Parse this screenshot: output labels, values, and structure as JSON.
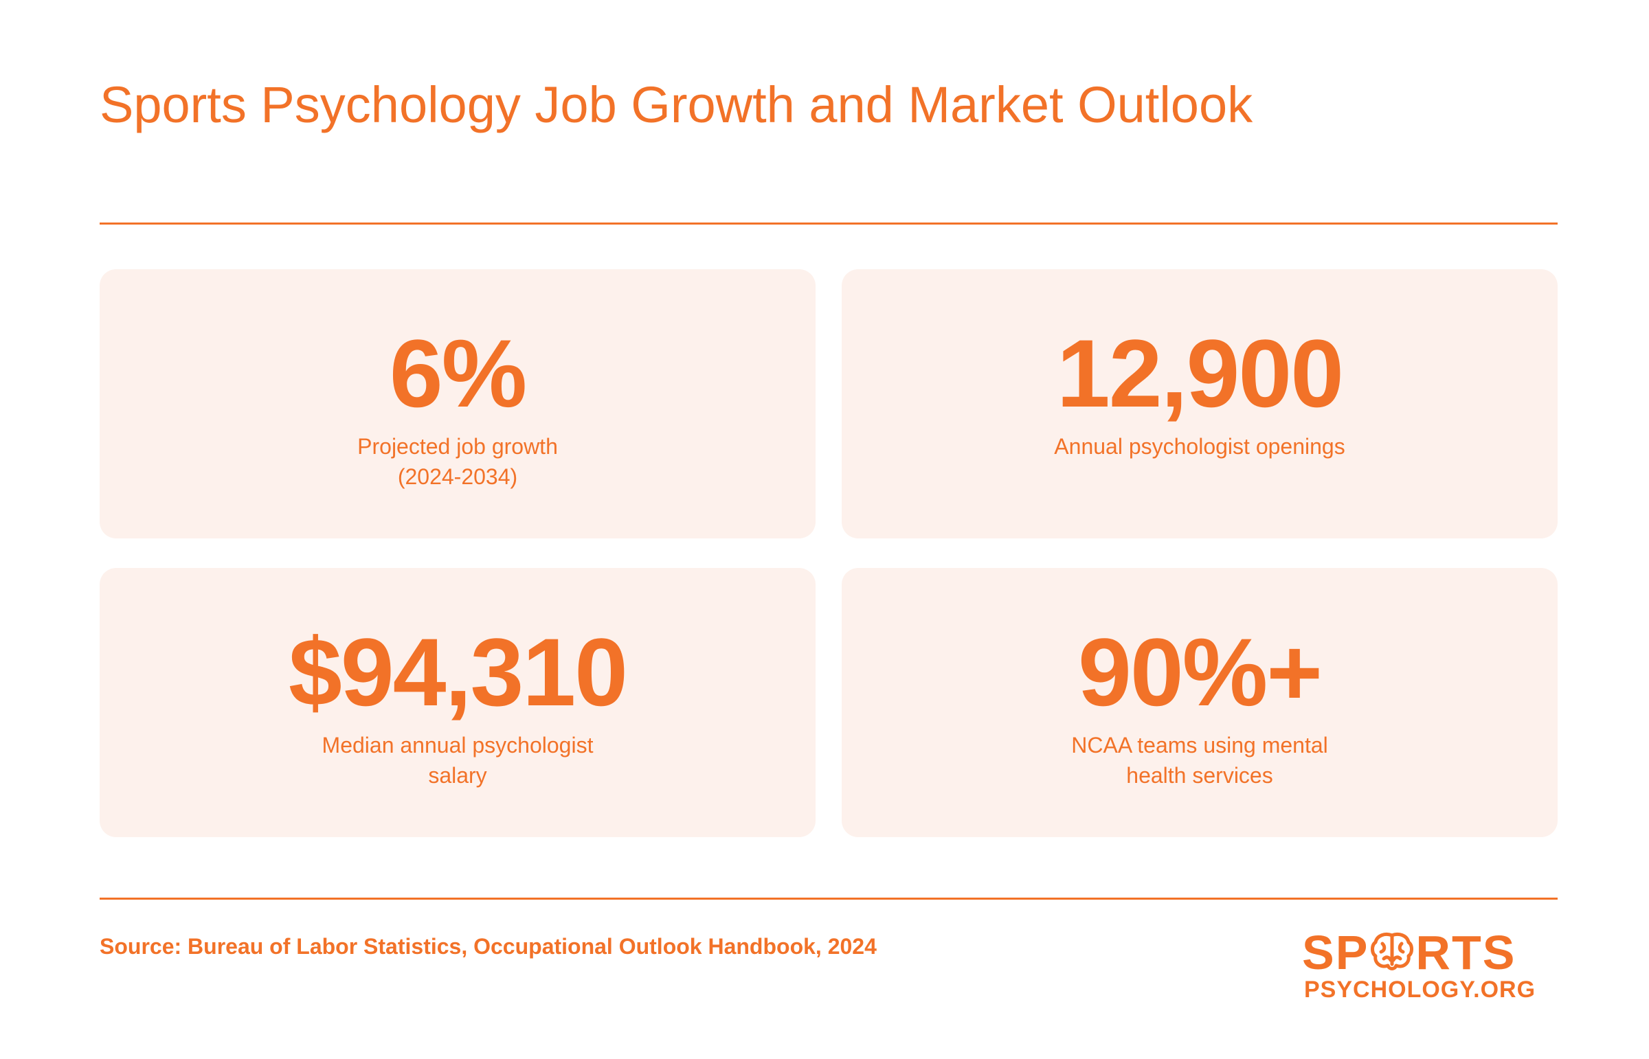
{
  "header": {
    "title": "Sports Psychology Job Growth and Market Outlook"
  },
  "stats": [
    {
      "value": "6%",
      "label": "Projected job growth (2024-2034)"
    },
    {
      "value": "12,900",
      "label": "Annual psychologist openings"
    },
    {
      "value": "$94,310",
      "label": "Median annual psychologist salary"
    },
    {
      "value": "90%+",
      "label": "NCAA teams using mental health services"
    }
  ],
  "footer": {
    "source": "Source: Bureau of Labor Statistics, Occupational Outlook Handbook, 2024",
    "logo_top_left": "SP",
    "logo_top_right": "RTS",
    "logo_bottom": "PSYCHOLOGY.ORG"
  },
  "colors": {
    "accent": "#f27228",
    "card_background": "#fdf1ec",
    "background": "#ffffff"
  },
  "icons": {
    "logo_o": "brain-icon"
  }
}
